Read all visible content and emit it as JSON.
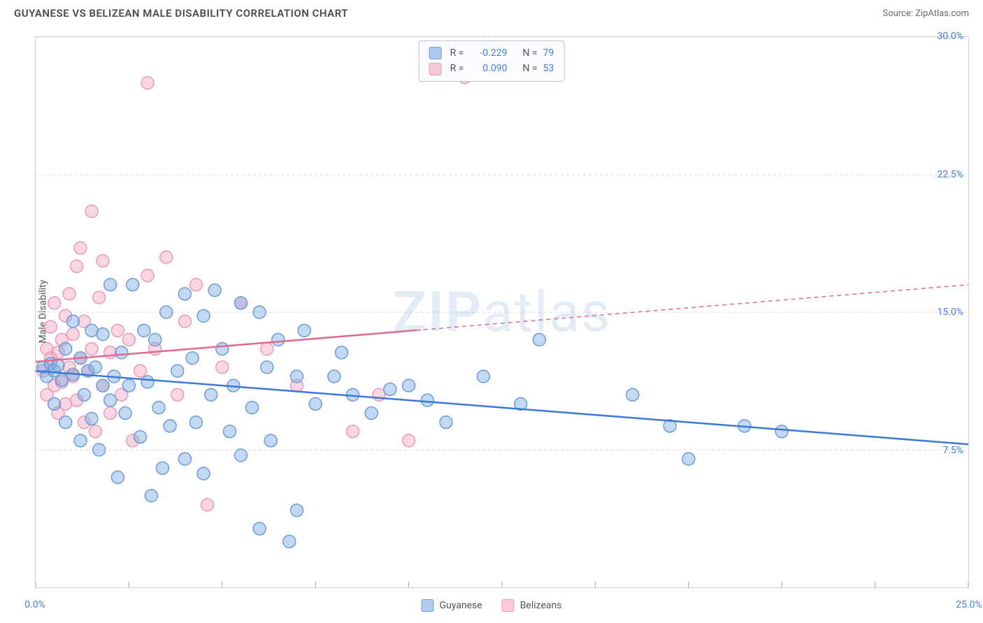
{
  "title": "GUYANESE VS BELIZEAN MALE DISABILITY CORRELATION CHART",
  "source": "Source: ZipAtlas.com",
  "watermark": {
    "prefix": "ZIP",
    "suffix": "atlas"
  },
  "y_axis_label": "Male Disability",
  "colors": {
    "series1_fill": "rgba(122,168,226,0.45)",
    "series1_stroke": "#6c9bd6",
    "series2_fill": "rgba(245,165,190,0.45)",
    "series2_stroke": "#e79bb4",
    "trend1": "#3c78d8",
    "trend2": "#e06a8c",
    "tick_text": "#4a7dd4",
    "grid": "#d8d8d8",
    "axis": "#bfbfbf",
    "tick": "#9a9a9a"
  },
  "chart": {
    "type": "scatter",
    "xlim": [
      0,
      25
    ],
    "ylim": [
      0,
      30
    ],
    "x_ticks": [
      0,
      2.5,
      5,
      7.5,
      10,
      12.5,
      15,
      17.5,
      20,
      22.5,
      25
    ],
    "x_tick_labels": {
      "0": "0.0%",
      "25": "25.0%"
    },
    "y_ticks": [
      7.5,
      15,
      22.5,
      30
    ],
    "y_tick_labels": {
      "7.5": "7.5%",
      "15": "15.0%",
      "22.5": "22.5%",
      "30": "30.0%"
    },
    "marker_radius": 9,
    "marker_stroke_width": 1.5,
    "trend_line_width": 2.5
  },
  "legend": {
    "series1_name": "Guyanese",
    "series2_name": "Belizeans",
    "rows": [
      {
        "swatch": "rgba(122,168,226,0.6)",
        "swatch_border": "#6c9bd6",
        "r": "-0.229",
        "n": "79"
      },
      {
        "swatch": "rgba(245,165,190,0.6)",
        "swatch_border": "#e79bb4",
        "r": "0.090",
        "n": "53"
      }
    ],
    "r_label": "R =",
    "n_label": "N ="
  },
  "series1": {
    "trend": {
      "y_at_x0": 11.8,
      "y_at_xmax": 7.8
    },
    "points": [
      [
        0.2,
        12.0
      ],
      [
        0.3,
        11.5
      ],
      [
        0.4,
        12.2
      ],
      [
        0.5,
        11.8
      ],
      [
        0.5,
        10.0
      ],
      [
        0.6,
        12.1
      ],
      [
        0.7,
        11.3
      ],
      [
        0.8,
        13.0
      ],
      [
        0.8,
        9.0
      ],
      [
        1.0,
        11.6
      ],
      [
        1.0,
        14.5
      ],
      [
        1.2,
        8.0
      ],
      [
        1.2,
        12.5
      ],
      [
        1.3,
        10.5
      ],
      [
        1.4,
        11.8
      ],
      [
        1.5,
        14.0
      ],
      [
        1.5,
        9.2
      ],
      [
        1.6,
        12.0
      ],
      [
        1.7,
        7.5
      ],
      [
        1.8,
        11.0
      ],
      [
        1.8,
        13.8
      ],
      [
        2.0,
        16.5
      ],
      [
        2.0,
        10.2
      ],
      [
        2.1,
        11.5
      ],
      [
        2.2,
        6.0
      ],
      [
        2.3,
        12.8
      ],
      [
        2.4,
        9.5
      ],
      [
        2.5,
        11.0
      ],
      [
        2.6,
        16.5
      ],
      [
        2.8,
        8.2
      ],
      [
        2.9,
        14.0
      ],
      [
        3.0,
        11.2
      ],
      [
        3.1,
        5.0
      ],
      [
        3.2,
        13.5
      ],
      [
        3.3,
        9.8
      ],
      [
        3.4,
        6.5
      ],
      [
        3.5,
        15.0
      ],
      [
        3.6,
        8.8
      ],
      [
        3.8,
        11.8
      ],
      [
        4.0,
        16.0
      ],
      [
        4.0,
        7.0
      ],
      [
        4.2,
        12.5
      ],
      [
        4.3,
        9.0
      ],
      [
        4.5,
        14.8
      ],
      [
        4.5,
        6.2
      ],
      [
        4.7,
        10.5
      ],
      [
        4.8,
        16.2
      ],
      [
        5.0,
        13.0
      ],
      [
        5.2,
        8.5
      ],
      [
        5.3,
        11.0
      ],
      [
        5.5,
        15.5
      ],
      [
        5.5,
        7.2
      ],
      [
        5.8,
        9.8
      ],
      [
        6.0,
        15.0
      ],
      [
        6.0,
        3.2
      ],
      [
        6.2,
        12.0
      ],
      [
        6.3,
        8.0
      ],
      [
        6.5,
        13.5
      ],
      [
        6.8,
        2.5
      ],
      [
        7.0,
        11.5
      ],
      [
        7.0,
        4.2
      ],
      [
        7.2,
        14.0
      ],
      [
        7.5,
        10.0
      ],
      [
        8.0,
        11.5
      ],
      [
        8.2,
        12.8
      ],
      [
        8.5,
        10.5
      ],
      [
        9.0,
        9.5
      ],
      [
        9.5,
        10.8
      ],
      [
        10.0,
        11.0
      ],
      [
        10.5,
        10.2
      ],
      [
        11.0,
        9.0
      ],
      [
        12.0,
        11.5
      ],
      [
        13.0,
        10.0
      ],
      [
        13.5,
        13.5
      ],
      [
        16.0,
        10.5
      ],
      [
        17.0,
        8.8
      ],
      [
        17.5,
        7.0
      ],
      [
        19.0,
        8.8
      ],
      [
        20.0,
        8.5
      ]
    ]
  },
  "series2": {
    "trend": {
      "y_at_x0": 12.3,
      "y_at_xmax": 16.5,
      "dash_from_x": 10.2
    },
    "points": [
      [
        0.2,
        11.8
      ],
      [
        0.3,
        13.0
      ],
      [
        0.3,
        10.5
      ],
      [
        0.4,
        12.5
      ],
      [
        0.4,
        14.2
      ],
      [
        0.5,
        11.0
      ],
      [
        0.5,
        15.5
      ],
      [
        0.6,
        12.8
      ],
      [
        0.6,
        9.5
      ],
      [
        0.7,
        13.5
      ],
      [
        0.7,
        11.2
      ],
      [
        0.8,
        14.8
      ],
      [
        0.8,
        10.0
      ],
      [
        0.9,
        12.0
      ],
      [
        0.9,
        16.0
      ],
      [
        1.0,
        11.5
      ],
      [
        1.0,
        13.8
      ],
      [
        1.1,
        17.5
      ],
      [
        1.1,
        10.2
      ],
      [
        1.2,
        18.5
      ],
      [
        1.2,
        12.5
      ],
      [
        1.3,
        14.5
      ],
      [
        1.3,
        9.0
      ],
      [
        1.4,
        11.8
      ],
      [
        1.5,
        20.5
      ],
      [
        1.5,
        13.0
      ],
      [
        1.6,
        8.5
      ],
      [
        1.7,
        15.8
      ],
      [
        1.8,
        11.0
      ],
      [
        1.8,
        17.8
      ],
      [
        2.0,
        12.8
      ],
      [
        2.0,
        9.5
      ],
      [
        2.2,
        14.0
      ],
      [
        2.3,
        10.5
      ],
      [
        2.5,
        13.5
      ],
      [
        2.6,
        8.0
      ],
      [
        2.8,
        11.8
      ],
      [
        3.0,
        17.0
      ],
      [
        3.0,
        27.5
      ],
      [
        3.2,
        13.0
      ],
      [
        3.5,
        18.0
      ],
      [
        3.8,
        10.5
      ],
      [
        4.0,
        14.5
      ],
      [
        4.3,
        16.5
      ],
      [
        4.6,
        4.5
      ],
      [
        5.0,
        12.0
      ],
      [
        5.5,
        15.5
      ],
      [
        6.2,
        13.0
      ],
      [
        7.0,
        11.0
      ],
      [
        8.5,
        8.5
      ],
      [
        9.2,
        10.5
      ],
      [
        10.0,
        8.0
      ],
      [
        11.5,
        27.8
      ]
    ]
  }
}
